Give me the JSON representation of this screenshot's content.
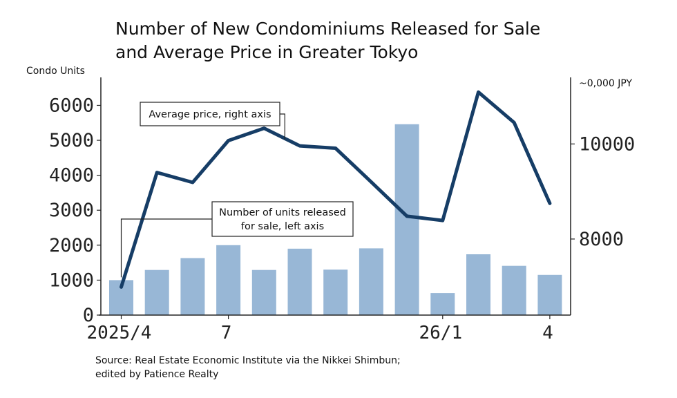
{
  "colors": {
    "bar": "#98b7d6",
    "line": "#163d66",
    "axis": "#222222",
    "text": "#111111"
  },
  "chart_data": {
    "type": "bar",
    "title_lines": [
      "Number of New Condominiums Released for Sale",
      "and Average Price in Greater Tokyo"
    ],
    "left_axis_label": "Condo Units",
    "right_axis_label": "~0,000 JPY",
    "x": [
      "2025/4",
      "2025/5",
      "2025/6",
      "2025/7",
      "2025/8",
      "2025/9",
      "2025/10",
      "2025/11",
      "2025/12",
      "2026/1",
      "2026/2",
      "2026/3",
      "2026/4"
    ],
    "x_tick_labels": [
      {
        "index": 0,
        "label": "2025/4"
      },
      {
        "index": 3,
        "label": "7"
      },
      {
        "index": 9,
        "label": "26/1"
      },
      {
        "index": 12,
        "label": "4"
      }
    ],
    "left_ylim": [
      0,
      6800
    ],
    "left_ticks": [
      "0",
      "1000",
      "2000",
      "3000",
      "4000",
      "5000",
      "6000"
    ],
    "right_ylim": [
      6400,
      11400
    ],
    "right_ticks": [
      "8000",
      "10000"
    ],
    "series": [
      {
        "name": "Number of units released for sale, left axis",
        "kind": "bar",
        "axis": "left",
        "values": [
          1000,
          1290,
          1630,
          2000,
          1290,
          1900,
          1300,
          1910,
          5460,
          630,
          1740,
          1410,
          1150
        ]
      },
      {
        "name": "Average price, right axis",
        "kind": "line",
        "axis": "right",
        "values": [
          6990,
          9400,
          9190,
          10070,
          10330,
          9960,
          9910,
          9200,
          8480,
          8390,
          11090,
          10450,
          8750
        ]
      }
    ],
    "callout_price": "Average price, right axis",
    "callout_units_lines": [
      "Number of units released",
      "for sale, left axis"
    ],
    "source_lines": [
      "Source: Real Estate Economic Institute via the Nikkei Shimbun;",
      "edited by Patience Realty"
    ]
  }
}
